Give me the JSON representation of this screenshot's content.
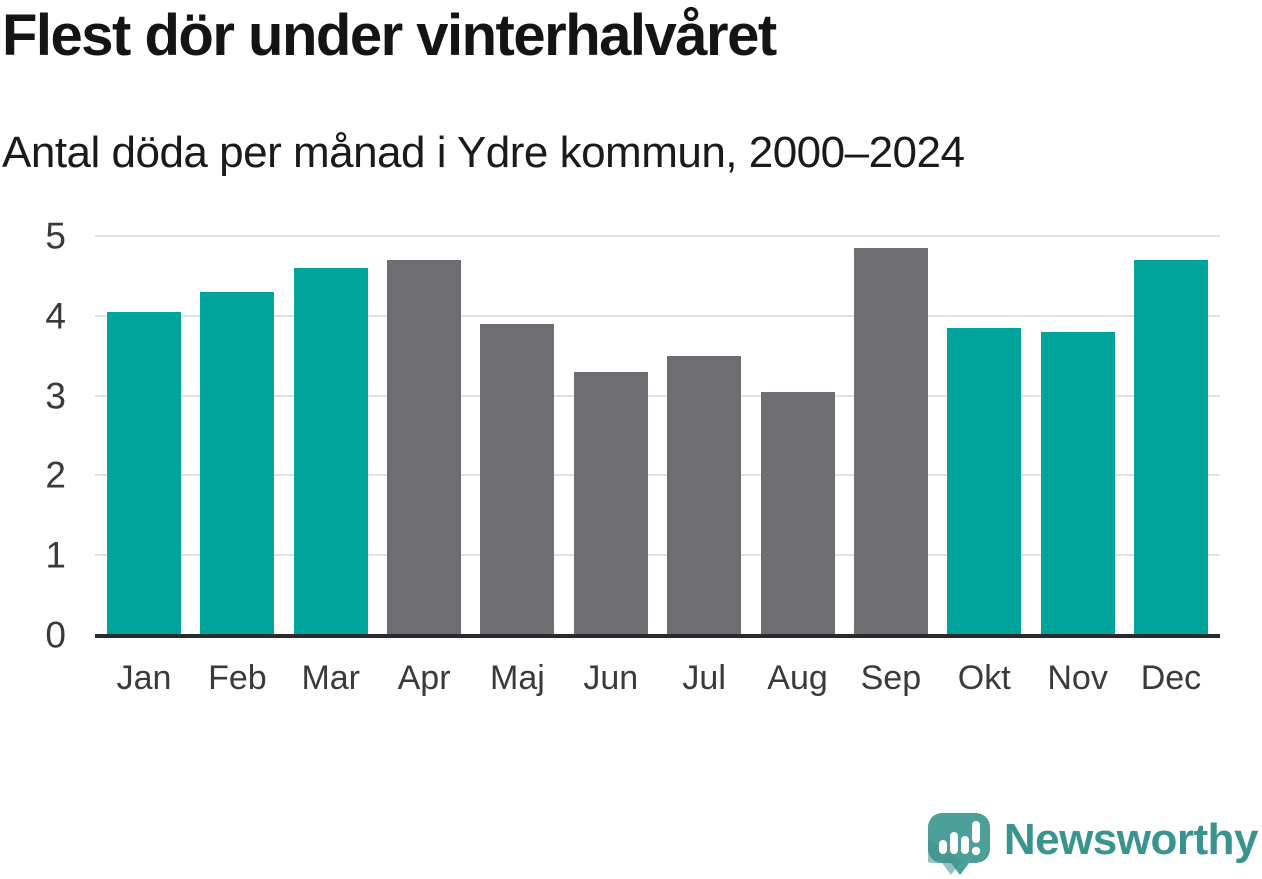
{
  "header": {
    "title": "Flest dör under vinterhalvåret",
    "subtitle": "Antal döda per månad i Ydre kommun, 2000–2024"
  },
  "chart_data": {
    "type": "bar",
    "title": "Flest dör under vinterhalvåret",
    "subtitle": "Antal döda per månad i Ydre kommun, 2000–2024",
    "categories": [
      "Jan",
      "Feb",
      "Mar",
      "Apr",
      "Maj",
      "Jun",
      "Jul",
      "Aug",
      "Sep",
      "Okt",
      "Nov",
      "Dec"
    ],
    "values": [
      4.05,
      4.3,
      4.6,
      4.7,
      3.9,
      3.3,
      3.5,
      3.05,
      4.85,
      3.85,
      3.8,
      4.7
    ],
    "groups": [
      "winter",
      "winter",
      "winter",
      "summer",
      "summer",
      "summer",
      "summer",
      "summer",
      "summer",
      "winter",
      "winter",
      "winter"
    ],
    "colors": {
      "winter": "#00a49b",
      "summer": "#6d6d72"
    },
    "xlabel": "",
    "ylabel": "",
    "ylim": [
      0,
      5
    ],
    "yticks": [
      0,
      1,
      2,
      3,
      4,
      5
    ],
    "grid": "horizontal",
    "legend": "none"
  },
  "footer": {
    "brand": "Newsworthy",
    "brand_color": "#3a948e",
    "logo_icon": "speech-bubble-bar-chart-icon",
    "logo_colors": {
      "bubble": "#4da09a",
      "bubble_shade": "#41908a",
      "glyph": "#ffffff"
    }
  }
}
